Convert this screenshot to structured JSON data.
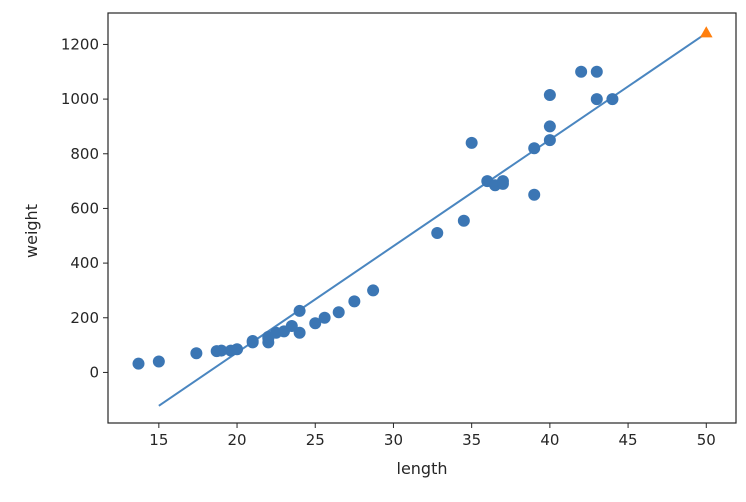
{
  "chart_data": {
    "type": "scatter",
    "xlabel": "length",
    "ylabel": "weight",
    "xlim": [
      11.75,
      51.9
    ],
    "ylim": [
      -185,
      1315
    ],
    "x_ticks": [
      15,
      20,
      25,
      30,
      35,
      40,
      45,
      50
    ],
    "y_ticks": [
      0,
      200,
      400,
      600,
      800,
      1000,
      1200
    ],
    "grid": false,
    "colors": {
      "points": "#3b76b4",
      "line": "#4a86c0",
      "highlight": "#ff7f0e"
    },
    "series": [
      {
        "kind": "scatter",
        "marker": "circle",
        "x": [
          13.7,
          15.0,
          17.4,
          18.7,
          19.0,
          19.6,
          20.0,
          21.0,
          21.0,
          22.0,
          22.0,
          22.0,
          22.5,
          23.0,
          23.5,
          24.0,
          24.0,
          25.0,
          25.6,
          26.5,
          27.5,
          28.7,
          32.8,
          34.5,
          35.0,
          36.0,
          36.5,
          37.0,
          37.0,
          39.0,
          39.0,
          40.0,
          40.0,
          40.0,
          42.0,
          43.0,
          43.0,
          44.0
        ],
        "y": [
          32,
          40,
          70,
          78,
          80,
          80,
          85,
          110,
          115,
          110,
          125,
          130,
          145,
          150,
          170,
          145,
          225,
          180,
          200,
          220,
          260,
          300,
          510,
          555,
          840,
          700,
          685,
          690,
          700,
          650,
          820,
          850,
          900,
          1015,
          1100,
          1000,
          1100,
          1000
        ]
      },
      {
        "kind": "line",
        "x": [
          15,
          50
        ],
        "y": [
          -122,
          1241
        ]
      },
      {
        "kind": "scatter",
        "marker": "triangle",
        "x": [
          50
        ],
        "y": [
          1241
        ]
      }
    ]
  }
}
